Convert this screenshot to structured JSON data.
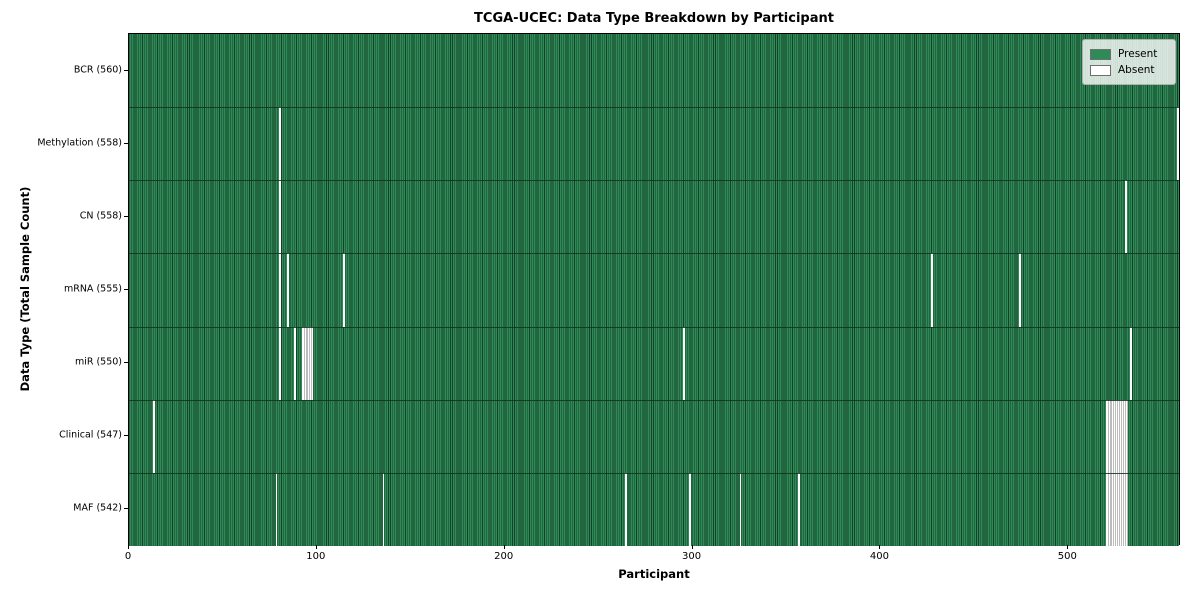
{
  "title": "TCGA-UCEC: Data Type Breakdown by Participant",
  "xlabel": "Participant",
  "ylabel": "Data Type (Total Sample Count)",
  "legend": {
    "items": [
      {
        "label": "Present",
        "color": "#2e8b57"
      },
      {
        "label": "Absent",
        "color": "#ffffff"
      }
    ]
  },
  "colors": {
    "present": "#2e8b57",
    "present_edge": "#16402a",
    "absent": "#ffffff",
    "absent_edge": "#bcbcbc",
    "row_divider": "#10301e"
  },
  "chart_data": {
    "type": "heatmap",
    "title": "TCGA-UCEC: Data Type Breakdown by Participant",
    "xlabel": "Participant",
    "ylabel": "Data Type (Total Sample Count)",
    "x_axis_ticks": [
      0,
      100,
      200,
      300,
      400,
      500
    ],
    "x_range": [
      0,
      560
    ],
    "total_participants": 560,
    "legend_entries": [
      "Present",
      "Absent"
    ],
    "legend_position": "upper right",
    "grid": false,
    "rows": [
      {
        "name": "BCR",
        "label": "BCR (560)",
        "present_count": 560,
        "absent_indices": []
      },
      {
        "name": "Methylation",
        "label": "Methylation (558)",
        "present_count": 558,
        "absent_indices": [
          80,
          558
        ]
      },
      {
        "name": "CN",
        "label": "CN (558)",
        "present_count": 558,
        "absent_indices": [
          80,
          530
        ]
      },
      {
        "name": "mRNA",
        "label": "mRNA (555)",
        "present_count": 555,
        "absent_indices": [
          80,
          84,
          114,
          427,
          474
        ]
      },
      {
        "name": "miR",
        "label": "miR (550)",
        "present_count": 550,
        "absent_indices": [
          80,
          88,
          92,
          93,
          94,
          95,
          96,
          97,
          295,
          533
        ]
      },
      {
        "name": "Clinical",
        "label": "Clinical (547)",
        "present_count": 547,
        "absent_indices": [
          13,
          520,
          521,
          522,
          523,
          524,
          525,
          526,
          527,
          528,
          529,
          530,
          531
        ]
      },
      {
        "name": "MAF",
        "label": "MAF (542)",
        "present_count": 542,
        "absent_indices": [
          78,
          135,
          264,
          298,
          325,
          356,
          520,
          521,
          522,
          523,
          524,
          525,
          526,
          527,
          528,
          529,
          530,
          531
        ]
      }
    ]
  }
}
